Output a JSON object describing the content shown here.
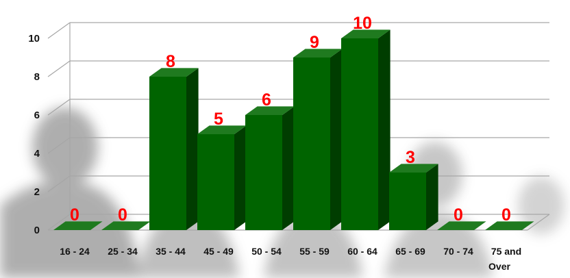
{
  "chart_data": {
    "type": "bar",
    "style": "3d-column",
    "title": "",
    "xlabel": "",
    "ylabel": "",
    "categories": [
      "16 - 24",
      "25 - 34",
      "35 - 44",
      "45 - 49",
      "50 - 54",
      "55 - 59",
      "60 - 64",
      "65 - 69",
      "70 - 74",
      "75 and Over"
    ],
    "values": [
      0,
      0,
      8,
      5,
      6,
      9,
      10,
      3,
      0,
      0
    ],
    "ylim": [
      0,
      10
    ],
    "yticks": [
      "0",
      "2",
      "4",
      "6",
      "8",
      "10"
    ],
    "grid": true,
    "legend": "none",
    "data_labels": true,
    "colors": {
      "bar_front": "#006400",
      "bar_top": "#1f7a1f",
      "bar_side": "#003d00",
      "data_label": "#ff0000",
      "gridline": "#a6a6a6"
    }
  }
}
